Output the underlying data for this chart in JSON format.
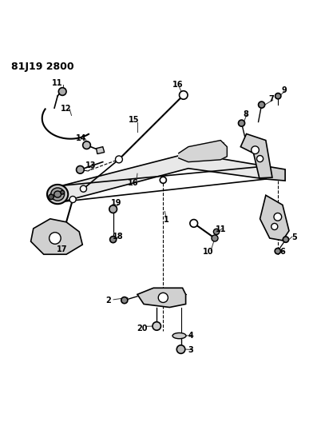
{
  "title": "81J19 2800",
  "bg_color": "#ffffff",
  "line_color": "#000000",
  "figsize": [
    4.07,
    5.33
  ],
  "dpi": 100
}
